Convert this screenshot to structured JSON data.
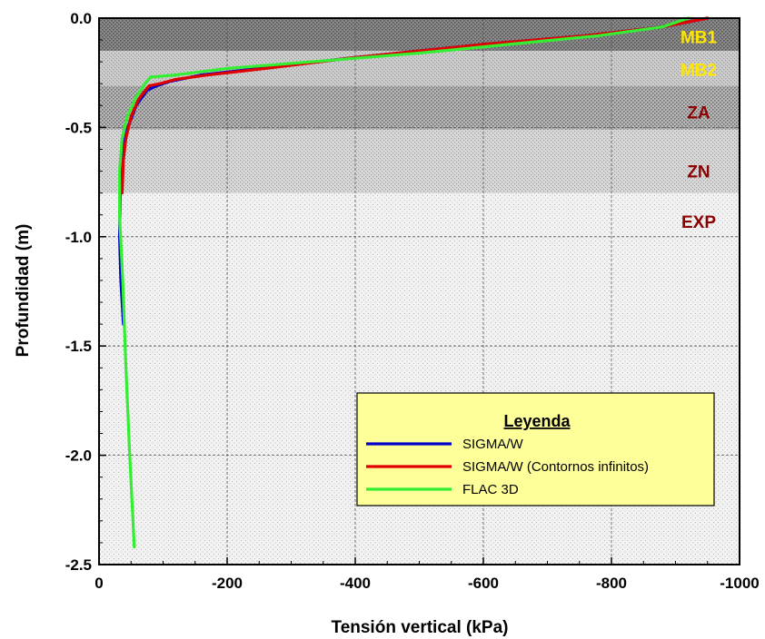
{
  "chart_data": {
    "type": "line",
    "xlabel": "Tensión vertical (kPa)",
    "ylabel": "Profundidad (m)",
    "xlim": [
      0,
      -1000
    ],
    "ylim": [
      -2.5,
      0.0
    ],
    "x_ticks": [
      0,
      -200,
      -400,
      -600,
      -800,
      -1000
    ],
    "x_tick_labels": [
      "0",
      "-200",
      "-400",
      "-600",
      "-800",
      "-1000"
    ],
    "y_ticks": [
      0.0,
      -0.5,
      -1.0,
      -1.5,
      -2.0,
      -2.5
    ],
    "y_tick_labels": [
      "0.0",
      "-0.5",
      "-1.0",
      "-1.5",
      "-2.0",
      "-2.5"
    ],
    "grid": "major gridlines, dashed",
    "layers": [
      {
        "name": "MB1",
        "top": 0.0,
        "bottom": -0.15,
        "fill": "#7d7d7d",
        "label_color": "#ffe600"
      },
      {
        "name": "MB2",
        "top": -0.15,
        "bottom": -0.31,
        "fill": "#c2c2c2",
        "label_color": "#ffe600"
      },
      {
        "name": "ZA",
        "top": -0.31,
        "bottom": -0.51,
        "fill": "#a9a9a9",
        "label_color": "#8b0000"
      },
      {
        "name": "ZN",
        "top": -0.51,
        "bottom": -0.8,
        "fill": "#d4d4d4",
        "label_color": "#8b0000"
      },
      {
        "name": "EXP",
        "top": -0.8,
        "bottom": -2.5,
        "fill": "#eeeeee",
        "label_color": "#8b0000"
      }
    ],
    "legend": {
      "title": "Leyenda",
      "placement": "lower-right",
      "background": "#ffff99"
    },
    "series": [
      {
        "name": "SIGMA/W",
        "color": "#0000cc",
        "points": [
          [
            -38,
            -1.4
          ],
          [
            -34,
            -1.2
          ],
          [
            -32,
            -1.0
          ],
          [
            -33,
            -0.8
          ],
          [
            -37,
            -0.6
          ],
          [
            -45,
            -0.5
          ],
          [
            -58,
            -0.4
          ],
          [
            -75,
            -0.33
          ],
          [
            -90,
            -0.31
          ],
          [
            -110,
            -0.29
          ],
          [
            -160,
            -0.26
          ],
          [
            -250,
            -0.23
          ],
          [
            -400,
            -0.18
          ],
          [
            -600,
            -0.12
          ],
          [
            -760,
            -0.08
          ],
          [
            -880,
            -0.04
          ],
          [
            -950,
            0.0
          ]
        ]
      },
      {
        "name": "SIGMA/W (Contornos infinitos)",
        "color": "#e00000",
        "points": [
          [
            -36,
            -0.8
          ],
          [
            -38,
            -0.65
          ],
          [
            -42,
            -0.55
          ],
          [
            -50,
            -0.45
          ],
          [
            -62,
            -0.37
          ],
          [
            -78,
            -0.31
          ],
          [
            -95,
            -0.3
          ],
          [
            -120,
            -0.28
          ],
          [
            -170,
            -0.26
          ],
          [
            -260,
            -0.23
          ],
          [
            -400,
            -0.18
          ],
          [
            -600,
            -0.12
          ],
          [
            -760,
            -0.08
          ],
          [
            -880,
            -0.04
          ],
          [
            -950,
            0.0
          ]
        ]
      },
      {
        "name": "FLAC 3D",
        "color": "#33ee33",
        "points": [
          [
            -55,
            -2.42
          ],
          [
            -48,
            -2.0
          ],
          [
            -42,
            -1.6
          ],
          [
            -37,
            -1.2
          ],
          [
            -32,
            -0.9
          ],
          [
            -32,
            -0.7
          ],
          [
            -36,
            -0.55
          ],
          [
            -44,
            -0.45
          ],
          [
            -58,
            -0.36
          ],
          [
            -72,
            -0.3
          ],
          [
            -80,
            -0.27
          ],
          [
            -120,
            -0.26
          ],
          [
            -200,
            -0.23
          ],
          [
            -330,
            -0.2
          ],
          [
            -500,
            -0.16
          ],
          [
            -640,
            -0.12
          ],
          [
            -780,
            -0.08
          ],
          [
            -880,
            -0.04
          ],
          [
            -920,
            0.0
          ]
        ]
      }
    ]
  }
}
